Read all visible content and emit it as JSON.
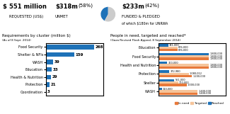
{
  "chart_data": [
    {
      "type": "pie",
      "values": [
        42,
        58
      ],
      "colors": [
        "#1e72b8",
        "#cccccc"
      ],
      "annotations": [
        "$",
        "551 million",
        "REQUESTED (US$)",
        "$318m",
        "(58%)",
        "UNMET",
        "$233m",
        "(42%)",
        "FUNDED & PLEDGED",
        "of which $180m for UNRWA"
      ]
    },
    {
      "type": "bar",
      "orientation": "horizontal",
      "title": "Requirements by cluster (million $)",
      "subtitle": "(As of 8 Sept. 2014)",
      "categories": [
        "Food Security",
        "Shelter & NFIs",
        "WASH",
        "Education",
        "Health & Nutrition",
        "Protection",
        "Coordination"
      ],
      "values": [
        268,
        159,
        39,
        33,
        29,
        21,
        3
      ],
      "color": "#1e72b8",
      "xlim": [
        0,
        320
      ],
      "xticks": [],
      "data_labels": true,
      "tick_labels": "y"
    },
    {
      "type": "bar",
      "orientation": "horizontal",
      "title": "People in need, targeted and reached*",
      "subtitle": "(Gaza Revised Flash Appeal, 8 September 2014)",
      "categories": [
        "Education",
        "Food Security",
        "Health and Nutrition",
        "Protection",
        "Shelter",
        "WASH"
      ],
      "series": [
        {
          "name": "In need",
          "color": "#e8793a",
          "values": [
            676000,
            1800000,
            1800000,
            1200000,
            1000000,
            1400000
          ],
          "value_labels": [
            "676,000",
            "1,800,000",
            "1,800,000",
            "1,200,000",
            "1,000,000",
            "1,400,000"
          ]
        },
        {
          "name": "Targeted",
          "color": "#f5c49a",
          "values": [
            676000,
            1800000,
            1800000,
            1080012,
            700000,
            1400000
          ],
          "value_labels": [
            "676,000",
            "1,800,000",
            "1,800,000",
            "1,080,012",
            "700,000",
            "1,400,000"
          ]
        },
        {
          "name": "Reached",
          "color": "#1e72b8",
          "values": [
            341000,
            1800000,
            300000,
            372980,
            561000,
            110000
          ],
          "value_labels": [
            "341,000",
            "1,800,000",
            "300,000",
            "372,980",
            "561,000",
            "110,000"
          ]
        }
      ],
      "xlim": [
        0,
        2400000
      ],
      "xticks": [],
      "data_labels": true,
      "tick_labels": "y",
      "legend": "lower right"
    }
  ]
}
